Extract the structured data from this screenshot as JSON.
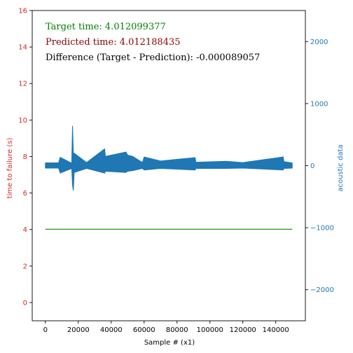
{
  "colors": {
    "left_axis": "#d62728",
    "right_axis": "#1f77b4",
    "target": "#008000",
    "predicted": "#8b0000",
    "difference": "#000000",
    "signal": "#1f77b4",
    "ttf_line": "#7f7f00"
  },
  "chart_data": {
    "type": "line",
    "title": "",
    "xlabel": "Sample # (x1)",
    "ylabel": "time to failure (s)",
    "y2label": "acoustic data",
    "xlim": [
      -8000,
      158000
    ],
    "ylim": [
      -1,
      16
    ],
    "y2lim": [
      -2500,
      2500
    ],
    "xticks": [
      0,
      20000,
      40000,
      60000,
      80000,
      100000,
      120000,
      140000
    ],
    "yticks": [
      0,
      2,
      4,
      6,
      8,
      10,
      12,
      14,
      16
    ],
    "y2ticks": [
      -2000,
      -1000,
      0,
      1000,
      2000
    ],
    "grid": false,
    "annotations": [
      {
        "key": "target",
        "text": "Target time: 4.012099377"
      },
      {
        "key": "predicted",
        "text": "Predicted time: 4.012188435"
      },
      {
        "key": "difference",
        "text": "Difference (Target - Prediction): -0.000089057"
      }
    ],
    "series": [
      {
        "axis": "left",
        "x": [
          0,
          150000
        ],
        "values": [
          4.0121,
          4.0121
        ]
      },
      {
        "axis": "left",
        "x": [
          0,
          150000
        ],
        "values": [
          4.0122,
          4.0122
        ]
      },
      {
        "axis": "right",
        "x": [
          0,
          8000,
          9000,
          16000,
          16500,
          17000,
          17500,
          25000,
          36000,
          36500,
          49000,
          50000,
          53000,
          59000,
          60000,
          70000,
          91000,
          91500,
          110000,
          120000,
          144500,
          145000,
          150000
        ],
        "values": [
          5,
          5,
          15,
          -5,
          320,
          -200,
          90,
          5,
          150,
          60,
          110,
          80,
          70,
          5,
          70,
          30,
          60,
          10,
          25,
          10,
          70,
          20,
          5
        ],
        "envelope": [
          40,
          40,
          120,
          40,
          320,
          200,
          110,
          45,
          120,
          90,
          110,
          90,
          80,
          45,
          70,
          45,
          70,
          45,
          45,
          40,
          70,
          45,
          40
        ]
      }
    ]
  }
}
